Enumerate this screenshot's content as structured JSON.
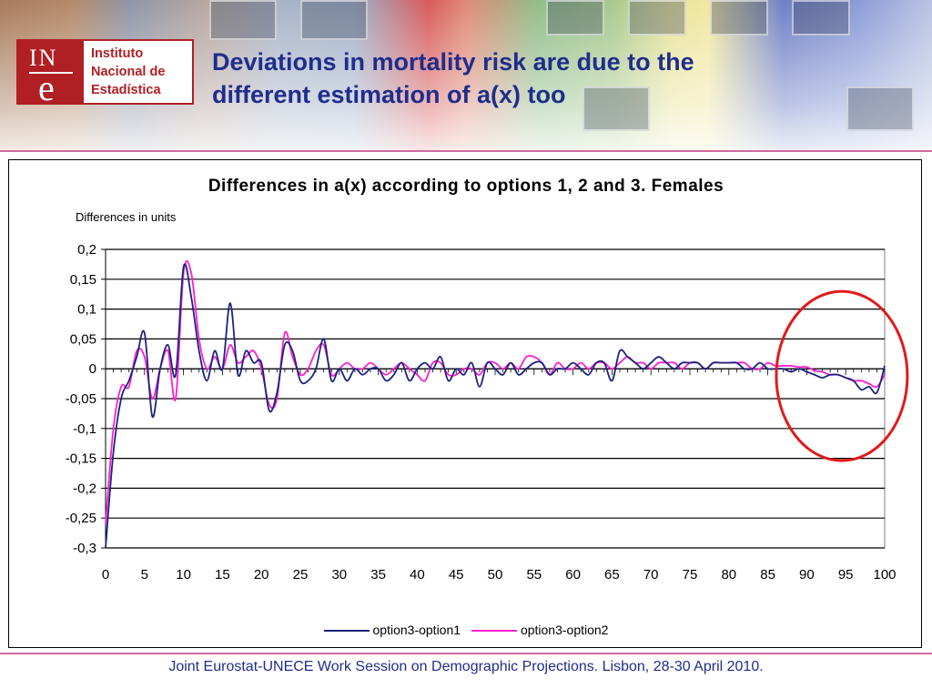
{
  "slide": {
    "title_line1": "Deviations in mortality risk are due to the",
    "title_line2": "different estimation of a(x) too",
    "footer": "Joint Eurostat-UNECE Work Session on Demographic Projections. Lisbon, 28-30 April 2010."
  },
  "logo": {
    "mark_top": "IN",
    "mark_bottom": "e",
    "line1": "Instituto",
    "line2": "Nacional de",
    "line3": "Estadística",
    "color": "#b01f24"
  },
  "chart_data": {
    "type": "line",
    "title": "Differences in a(x) according to options 1, 2 and 3. Females",
    "ylabel": "Differences in units",
    "xlabel": "",
    "xlim": [
      0,
      100
    ],
    "ylim": [
      -0.3,
      0.2
    ],
    "x_ticks": [
      "0",
      "5",
      "10",
      "15",
      "20",
      "25",
      "30",
      "35",
      "40",
      "45",
      "50",
      "55",
      "60",
      "65",
      "70",
      "75",
      "80",
      "85",
      "90",
      "95",
      "100"
    ],
    "y_ticks": [
      "0,2",
      "0,15",
      "0,1",
      "0,05",
      "0",
      "-0,05",
      "-0,1",
      "-0,15",
      "-0,2",
      "-0,25",
      "-0,3"
    ],
    "grid": true,
    "legend_position": "bottom",
    "annotation": "red circle highlighting ages 88-100",
    "series": [
      {
        "name": "option3-option1",
        "color": "#1a237e",
        "points": [
          [
            0,
            -0.3
          ],
          [
            1,
            -0.14
          ],
          [
            2,
            -0.05
          ],
          [
            3,
            -0.02
          ],
          [
            4,
            0.02
          ],
          [
            5,
            0.06
          ],
          [
            6,
            -0.08
          ],
          [
            7,
            0.0
          ],
          [
            8,
            0.04
          ],
          [
            9,
            -0.01
          ],
          [
            10,
            0.17
          ],
          [
            11,
            0.12
          ],
          [
            12,
            0.03
          ],
          [
            13,
            -0.02
          ],
          [
            14,
            0.03
          ],
          [
            15,
            0.0
          ],
          [
            16,
            0.11
          ],
          [
            17,
            -0.01
          ],
          [
            18,
            0.03
          ],
          [
            19,
            0.01
          ],
          [
            20,
            0.01
          ],
          [
            21,
            -0.07
          ],
          [
            22,
            -0.04
          ],
          [
            23,
            0.04
          ],
          [
            24,
            0.03
          ],
          [
            25,
            -0.02
          ],
          [
            26,
            -0.02
          ],
          [
            27,
            0.0
          ],
          [
            28,
            0.05
          ],
          [
            29,
            -0.02
          ],
          [
            30,
            0.0
          ],
          [
            31,
            -0.02
          ],
          [
            32,
            0.0
          ],
          [
            33,
            -0.01
          ],
          [
            34,
            0.0
          ],
          [
            35,
            0.0
          ],
          [
            36,
            -0.02
          ],
          [
            37,
            -0.01
          ],
          [
            38,
            0.01
          ],
          [
            39,
            -0.02
          ],
          [
            40,
            0.0
          ],
          [
            41,
            0.01
          ],
          [
            42,
            0.0
          ],
          [
            43,
            0.02
          ],
          [
            44,
            -0.02
          ],
          [
            45,
            0.0
          ],
          [
            46,
            -0.01
          ],
          [
            47,
            0.01
          ],
          [
            48,
            -0.03
          ],
          [
            49,
            0.01
          ],
          [
            50,
            0.0
          ],
          [
            51,
            -0.01
          ],
          [
            52,
            0.01
          ],
          [
            53,
            -0.01
          ],
          [
            54,
            0.0
          ],
          [
            55,
            0.01
          ],
          [
            56,
            0.01
          ],
          [
            57,
            -0.01
          ],
          [
            58,
            0.0
          ],
          [
            59,
            0.0
          ],
          [
            60,
            0.01
          ],
          [
            61,
            0.0
          ],
          [
            62,
            -0.01
          ],
          [
            63,
            0.01
          ],
          [
            64,
            0.01
          ],
          [
            65,
            -0.02
          ],
          [
            66,
            0.03
          ],
          [
            67,
            0.02
          ],
          [
            68,
            0.01
          ],
          [
            69,
            0.0
          ],
          [
            70,
            0.01
          ],
          [
            71,
            0.02
          ],
          [
            72,
            0.01
          ],
          [
            73,
            0.0
          ],
          [
            74,
            0.01
          ],
          [
            75,
            0.01
          ],
          [
            76,
            0.01
          ],
          [
            77,
            0.0
          ],
          [
            78,
            0.01
          ],
          [
            79,
            0.01
          ],
          [
            80,
            0.01
          ],
          [
            81,
            0.01
          ],
          [
            82,
            0.0
          ],
          [
            83,
            0.0
          ],
          [
            84,
            0.01
          ],
          [
            85,
            0.0
          ],
          [
            86,
            0.0
          ],
          [
            87,
            0.0
          ],
          [
            88,
            -0.005
          ],
          [
            89,
            0.0
          ],
          [
            90,
            -0.005
          ],
          [
            91,
            -0.01
          ],
          [
            92,
            -0.015
          ],
          [
            93,
            -0.01
          ],
          [
            94,
            -0.01
          ],
          [
            95,
            -0.015
          ],
          [
            96,
            -0.02
          ],
          [
            97,
            -0.035
          ],
          [
            98,
            -0.03
          ],
          [
            99,
            -0.04
          ],
          [
            100,
            0.005
          ]
        ]
      },
      {
        "name": "option3-option2",
        "color": "#ff1fd0",
        "points": [
          [
            0,
            -0.26
          ],
          [
            1,
            -0.1
          ],
          [
            2,
            -0.03
          ],
          [
            3,
            -0.03
          ],
          [
            4,
            0.03
          ],
          [
            5,
            0.02
          ],
          [
            6,
            -0.05
          ],
          [
            7,
            0.0
          ],
          [
            8,
            0.03
          ],
          [
            9,
            -0.05
          ],
          [
            10,
            0.16
          ],
          [
            11,
            0.16
          ],
          [
            12,
            0.05
          ],
          [
            13,
            0.0
          ],
          [
            14,
            0.02
          ],
          [
            15,
            0.0
          ],
          [
            16,
            0.04
          ],
          [
            17,
            0.01
          ],
          [
            18,
            0.02
          ],
          [
            19,
            0.03
          ],
          [
            20,
            0.0
          ],
          [
            21,
            -0.06
          ],
          [
            22,
            -0.05
          ],
          [
            23,
            0.06
          ],
          [
            24,
            0.02
          ],
          [
            25,
            -0.01
          ],
          [
            26,
            0.0
          ],
          [
            27,
            0.03
          ],
          [
            28,
            0.04
          ],
          [
            29,
            -0.01
          ],
          [
            30,
            0.0
          ],
          [
            31,
            0.01
          ],
          [
            32,
            0.0
          ],
          [
            33,
            0.0
          ],
          [
            34,
            0.01
          ],
          [
            35,
            0.0
          ],
          [
            36,
            -0.01
          ],
          [
            37,
            0.0
          ],
          [
            38,
            0.01
          ],
          [
            39,
            0.0
          ],
          [
            40,
            -0.01
          ],
          [
            41,
            -0.02
          ],
          [
            42,
            0.01
          ],
          [
            43,
            0.01
          ],
          [
            44,
            -0.01
          ],
          [
            45,
            -0.01
          ],
          [
            46,
            0.0
          ],
          [
            47,
            0.0
          ],
          [
            48,
            -0.01
          ],
          [
            49,
            0.01
          ],
          [
            50,
            0.01
          ],
          [
            51,
            0.0
          ],
          [
            52,
            0.01
          ],
          [
            53,
            0.0
          ],
          [
            54,
            0.02
          ],
          [
            55,
            0.02
          ],
          [
            56,
            0.01
          ],
          [
            57,
            -0.01
          ],
          [
            58,
            0.01
          ],
          [
            59,
            0.0
          ],
          [
            60,
            0.0
          ],
          [
            61,
            0.01
          ],
          [
            62,
            0.0
          ],
          [
            63,
            0.01
          ],
          [
            64,
            0.01
          ],
          [
            65,
            0.0
          ],
          [
            66,
            0.01
          ],
          [
            67,
            0.02
          ],
          [
            68,
            0.01
          ],
          [
            69,
            0.01
          ],
          [
            70,
            0.0
          ],
          [
            71,
            0.01
          ],
          [
            72,
            0.01
          ],
          [
            73,
            0.01
          ],
          [
            74,
            0.0
          ],
          [
            75,
            0.01
          ],
          [
            76,
            0.01
          ],
          [
            77,
            0.0
          ],
          [
            78,
            0.01
          ],
          [
            79,
            0.01
          ],
          [
            80,
            0.01
          ],
          [
            81,
            0.01
          ],
          [
            82,
            0.01
          ],
          [
            83,
            0.0
          ],
          [
            84,
            0.0
          ],
          [
            85,
            0.01
          ],
          [
            86,
            0.005
          ],
          [
            87,
            0.005
          ],
          [
            88,
            0.005
          ],
          [
            89,
            0.003
          ],
          [
            90,
            0.003
          ],
          [
            91,
            -0.003
          ],
          [
            92,
            -0.005
          ],
          [
            93,
            -0.01
          ],
          [
            94,
            -0.01
          ],
          [
            95,
            -0.015
          ],
          [
            96,
            -0.02
          ],
          [
            97,
            -0.02
          ],
          [
            98,
            -0.025
          ],
          [
            99,
            -0.03
          ],
          [
            100,
            -0.01
          ]
        ]
      }
    ]
  }
}
